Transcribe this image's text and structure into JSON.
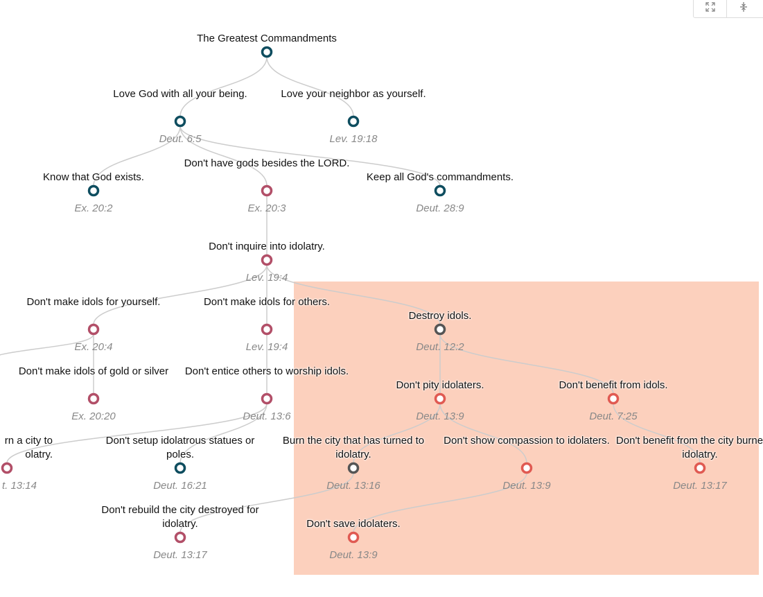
{
  "toolbar": {
    "expand_icon": "expand-arrows-icon",
    "collapse_icon": "vertical-collapse-icon"
  },
  "colors": {
    "teal": "#0e4d5f",
    "rose": "#b24f68",
    "gray": "#555555",
    "coral": "#e05a52",
    "link": "#cccccc",
    "highlight": "#fcc8b2"
  },
  "nodes": [
    {
      "id": "greatest",
      "label": "The Greatest Commandments",
      "ref": "",
      "color": "teal"
    },
    {
      "id": "love-god",
      "label": "Love God with all your being.",
      "ref": "Deut. 6:5",
      "color": "teal"
    },
    {
      "id": "love-neighbor",
      "label": "Love your neighbor as yourself.",
      "ref": "Lev. 19:18",
      "color": "teal"
    },
    {
      "id": "know-god",
      "label": "Know that God exists.",
      "ref": "Ex. 20:2",
      "color": "teal"
    },
    {
      "id": "no-other-gods",
      "label": "Don't have gods besides the LORD.",
      "ref": "Ex. 20:3",
      "color": "rose"
    },
    {
      "id": "keep-commandments",
      "label": "Keep all God's commandments.",
      "ref": "Deut. 28:9",
      "color": "teal"
    },
    {
      "id": "no-inquire",
      "label": "Don't inquire into idolatry.",
      "ref": "Lev. 19:4",
      "color": "rose"
    },
    {
      "id": "idols-self",
      "label": "Don't make idols for yourself.",
      "ref": "Ex. 20:4",
      "color": "rose"
    },
    {
      "id": "idols-others",
      "label": "Don't make idols for others.",
      "ref": "Lev. 19:4",
      "color": "rose"
    },
    {
      "id": "destroy-idols",
      "label": "Destroy idols.",
      "ref": "Deut. 12:2",
      "color": "gray"
    },
    {
      "id": "idols-gold",
      "label": "Don't make idols of gold or silver",
      "ref": "Ex. 20:20",
      "color": "rose"
    },
    {
      "id": "entice",
      "label": "Don't entice others to worship idols.",
      "ref": "Deut. 13:6",
      "color": "rose"
    },
    {
      "id": "no-pity",
      "label": "Don't pity idolaters.",
      "ref": "Deut. 13:9",
      "color": "coral"
    },
    {
      "id": "no-benefit",
      "label": "Don't benefit from idols.",
      "ref": "Deut. 7:25",
      "color": "coral"
    },
    {
      "id": "no-rebuild-city",
      "label": "rn a city to olatry.",
      "ref": "t. 13:14",
      "color": "rose"
    },
    {
      "id": "statues",
      "label": "Don't setup idolatrous statues or poles.",
      "ref": "Deut. 16:21",
      "color": "teal"
    },
    {
      "id": "burn-city",
      "label": "Burn the city that has turned to idolatry.",
      "ref": "Deut. 13:16",
      "color": "gray"
    },
    {
      "id": "no-compassion",
      "label": "Don't show compassion to idolaters.",
      "ref": "Deut. 13:9",
      "color": "coral"
    },
    {
      "id": "benefit-city",
      "label": "Don't benefit from the city burned for idolatry.",
      "ref": "Deut. 13:17",
      "color": "coral"
    },
    {
      "id": "rebuild",
      "label": "Don't rebuild the city destroyed for idolatry.",
      "ref": "Deut. 13:17",
      "color": "rose"
    },
    {
      "id": "save",
      "label": "Don't save idolaters.",
      "ref": "Deut. 13:9",
      "color": "coral"
    }
  ],
  "links": [
    [
      "greatest",
      "love-god"
    ],
    [
      "greatest",
      "love-neighbor"
    ],
    [
      "love-god",
      "know-god"
    ],
    [
      "love-god",
      "no-other-gods"
    ],
    [
      "love-god",
      "keep-commandments"
    ],
    [
      "no-other-gods",
      "no-inquire"
    ],
    [
      "no-inquire",
      "idols-self"
    ],
    [
      "no-inquire",
      "idols-others"
    ],
    [
      "no-inquire",
      "destroy-idols"
    ],
    [
      "idols-self",
      "idols-gold"
    ],
    [
      "idols-self",
      "offscreen-left"
    ],
    [
      "idols-others",
      "entice"
    ],
    [
      "destroy-idols",
      "no-pity"
    ],
    [
      "destroy-idols",
      "no-benefit"
    ],
    [
      "entice",
      "no-rebuild-city"
    ],
    [
      "entice",
      "statues"
    ],
    [
      "no-pity",
      "burn-city"
    ],
    [
      "no-pity",
      "no-compassion"
    ],
    [
      "no-benefit",
      "benefit-city"
    ],
    [
      "burn-city",
      "rebuild"
    ],
    [
      "no-compassion",
      "save"
    ]
  ]
}
